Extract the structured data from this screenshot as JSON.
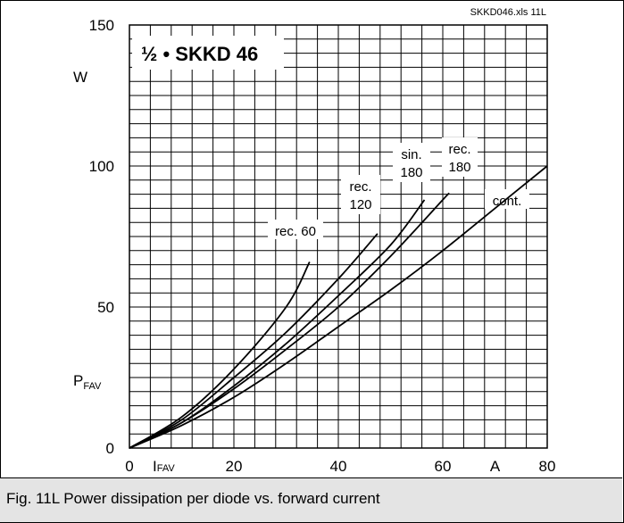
{
  "source_label": "SKKD046.xls 11L",
  "caption": "Fig. 11L Power dissipation per diode vs. forward current",
  "chart_data": {
    "type": "line",
    "title": "½ • SKKD 46",
    "y_axis": {
      "symbol": "P",
      "subscript": "FAV",
      "unit": "W",
      "ticks": [
        0,
        50,
        100,
        150
      ],
      "range": [
        0,
        150
      ]
    },
    "x_axis": {
      "symbol": "I",
      "subscript": "FAV",
      "unit": "A",
      "ticks": [
        0,
        20,
        40,
        60,
        80
      ],
      "range": [
        0,
        80
      ]
    },
    "grid": true,
    "series": [
      {
        "name": "rec. 60",
        "label_lines": [
          "rec. 60"
        ],
        "points": [
          [
            0,
            0
          ],
          [
            10,
            11
          ],
          [
            20,
            28
          ],
          [
            30,
            50
          ],
          [
            34.5,
            66
          ]
        ]
      },
      {
        "name": "rec. 120",
        "label_lines": [
          "rec.",
          "120"
        ],
        "points": [
          [
            0,
            0
          ],
          [
            10,
            10
          ],
          [
            20,
            25
          ],
          [
            30,
            41
          ],
          [
            40,
            60
          ],
          [
            47.5,
            76
          ]
        ]
      },
      {
        "name": "sin. 180",
        "label_lines": [
          "sin.",
          "180"
        ],
        "points": [
          [
            0,
            0
          ],
          [
            10,
            9
          ],
          [
            20,
            22
          ],
          [
            30,
            37
          ],
          [
            40,
            54
          ],
          [
            50,
            72
          ],
          [
            56.5,
            88
          ]
        ]
      },
      {
        "name": "rec. 180",
        "label_lines": [
          "rec.",
          "180"
        ],
        "points": [
          [
            0,
            0
          ],
          [
            10,
            9
          ],
          [
            20,
            21
          ],
          [
            30,
            35
          ],
          [
            40,
            50
          ],
          [
            50,
            68
          ],
          [
            60,
            88
          ],
          [
            61,
            90
          ]
        ]
      },
      {
        "name": "cont.",
        "label_lines": [
          "cont."
        ],
        "points": [
          [
            0,
            0
          ],
          [
            10,
            8
          ],
          [
            20,
            18
          ],
          [
            30,
            30
          ],
          [
            40,
            43
          ],
          [
            50,
            56
          ],
          [
            60,
            70
          ],
          [
            70,
            85
          ],
          [
            80,
            100
          ]
        ]
      }
    ]
  }
}
